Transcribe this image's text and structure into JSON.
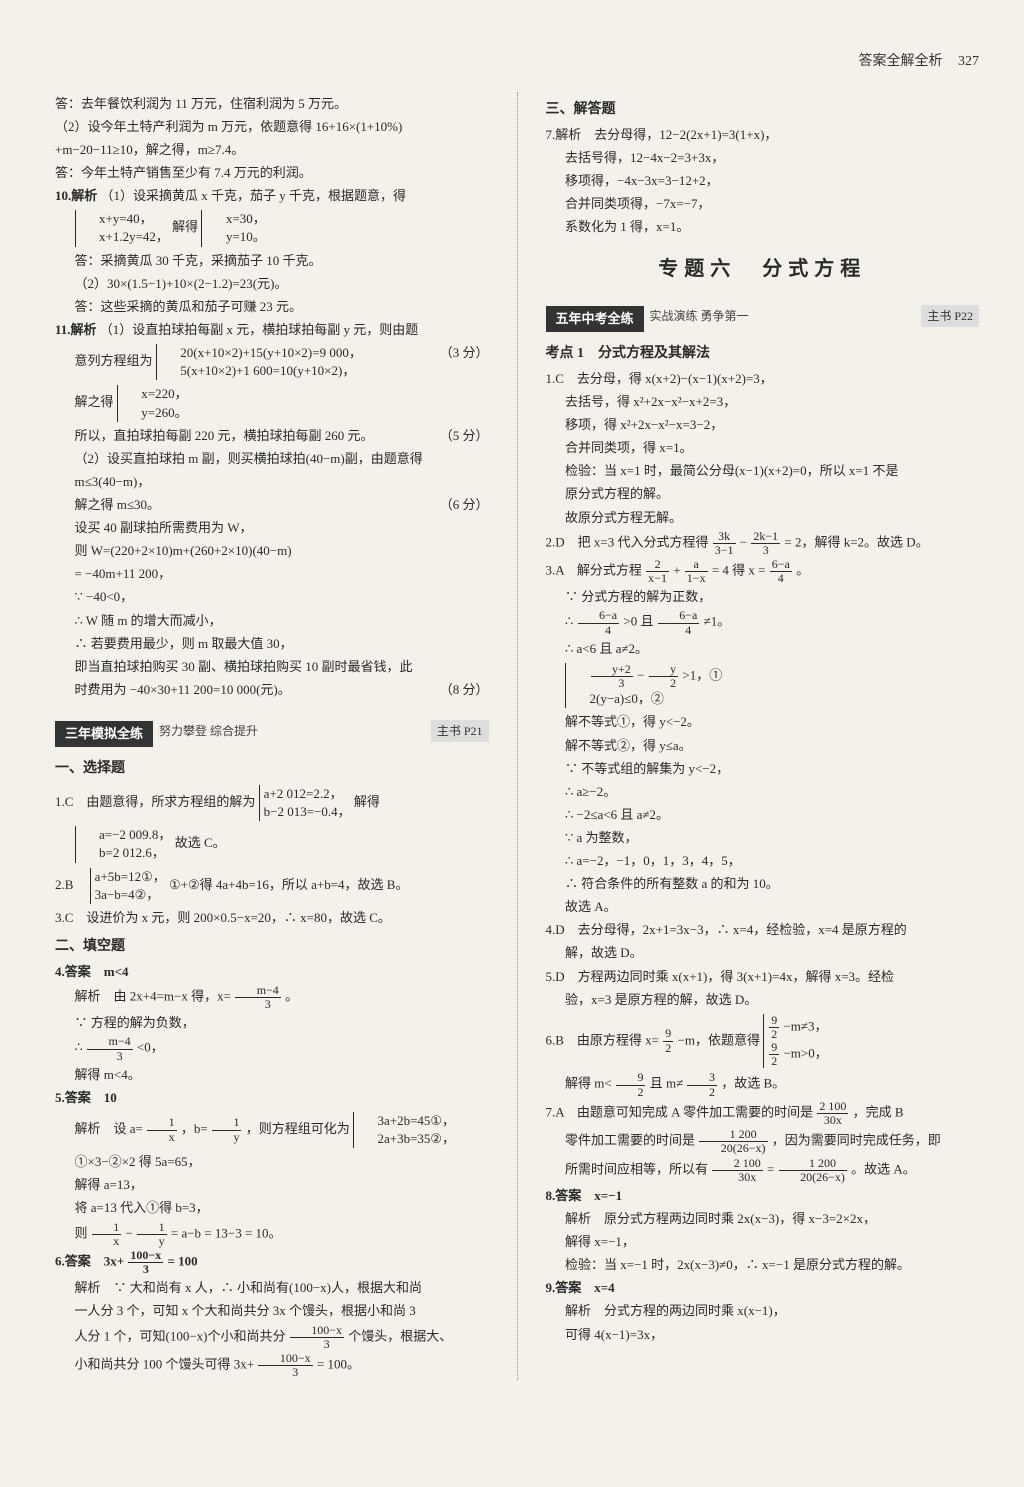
{
  "header": {
    "title": "答案全解全析",
    "page": "327"
  },
  "left": {
    "l1": "答：去年餐饮利润为 11 万元，住宿利润为 5 万元。",
    "l2": "（2）设今年土特产利润为 m 万元，依题意得 16+16×(1+10%)",
    "l3": "+m−20−11≥10，解之得，m≥7.4。",
    "l4": "答：今年土特产销售至少有 7.4 万元的利润。",
    "i10_head": "10.解析",
    "i10_1": "（1）设采摘黄瓜 x 千克，茄子 y 千克，根据题意，得",
    "i10_sys1a": "x+y=40，",
    "i10_sys1b": "x+1.2y=42，",
    "i10_solve": "解得",
    "i10_sys2a": "x=30，",
    "i10_sys2b": "y=10。",
    "i10_2": "答：采摘黄瓜 30 千克，采摘茄子 10 千克。",
    "i10_3": "（2）30×(1.5−1)+10×(2−1.2)=23(元)。",
    "i10_4": "答：这些采摘的黄瓜和茄子可赚 23 元。",
    "i11_head": "11.解析",
    "i11_1": "（1）设直拍球拍每副 x 元，横拍球拍每副 y 元，则由题",
    "i11_2": "意列方程组为",
    "i11_sysa": "20(x+10×2)+15(y+10×2)=9 000，",
    "i11_sysb": "5(x+10×2)+1 600=10(y+10×2)，",
    "i11_score1": "（3 分）",
    "i11_3": "解之得",
    "i11_s2a": "x=220，",
    "i11_s2b": "y=260。",
    "i11_4": "所以，直拍球拍每副 220 元，横拍球拍每副 260 元。",
    "i11_score2": "（5 分）",
    "i11_5": "（2）设买直拍球拍 m 副，则买横拍球拍(40−m)副，由题意得",
    "i11_6": "m≤3(40−m)，",
    "i11_7": "解之得 m≤30。",
    "i11_score3": "（6 分）",
    "i11_8": "设买 40 副球拍所需费用为 W，",
    "i11_9": "则 W=(220+2×10)m+(260+2×10)(40−m)",
    "i11_10": "= −40m+11 200，",
    "i11_11": "∵ −40<0，",
    "i11_12": "∴ W 随 m 的增大而减小，",
    "i11_13": "∴ 若要费用最少，则 m 取最大值 30，",
    "i11_14": "即当直拍球拍购买 30 副、横拍球拍购买 10 副时最省钱，此",
    "i11_15": "时费用为 −40×30+11 200=10 000(元)。",
    "i11_score4": "（8 分）",
    "bar1": "三年模拟全练",
    "bar1_sub": "努力攀登 综合提升",
    "bar1_ref": "主书 P21",
    "sec1": "一、选择题",
    "q1": "1.C　由题意得，所求方程组的解为",
    "q1a": "a+2 012=2.2，",
    "q1b": "b−2 013=−0.4，",
    "q1_solve": "解得",
    "q1c": "a=−2 009.8，",
    "q1d": "b=2 012.6，",
    "q1_end": "故选 C。",
    "q2": "2.B　",
    "q2a": "a+5b=12①，",
    "q2b": "3a−b=4②，",
    "q2_end": "①+②得 4a+4b=16，所以 a+b=4，故选 B。",
    "q3": "3.C　设进价为 x 元，则 200×0.5−x=20，∴ x=80，故选 C。",
    "sec2": "二、填空题",
    "q4": "4.答案　m<4",
    "q4_1": "解析　由 2x+4=m−x 得，x=",
    "q4_f_n": "m−4",
    "q4_f_d": "3",
    "q4_1b": "。",
    "q4_2": "∵ 方程的解为负数，",
    "q4_3": "∴ ",
    "q4_3b": "<0，",
    "q4_4": "解得 m<4。",
    "q5": "5.答案　10",
    "q5_1": "解析　设 a=",
    "q5_fa_n": "1",
    "q5_fa_d": "x",
    "q5_1b": "，b=",
    "q5_fb_n": "1",
    "q5_fb_d": "y",
    "q5_1c": "，则方程组可化为",
    "q5_sa": "3a+2b=45①，",
    "q5_sb": "2a+3b=35②，",
    "q5_2": "①×3−②×2 得 5a=65，",
    "q5_3": "解得 a=13，",
    "q5_4": "将 a=13 代入①得 b=3，",
    "q5_5": "则 ",
    "q5_5b": " − ",
    "q5_5c": " = a−b = 13−3 = 10。",
    "q6": "6.答案　3x+",
    "q6_f_n": "100−x",
    "q6_f_d": "3",
    "q6b": " = 100",
    "q6_1": "解析　∵ 大和尚有 x 人，∴ 小和尚有(100−x)人，根据大和尚",
    "q6_2": "一人分 3 个，可知 x 个大和尚共分 3x 个馒头，根据小和尚 3",
    "q6_3": "人分 1 个，可知(100−x)个小和尚共分",
    "q6_3b": "个馒头，根据大、",
    "q6_4": "小和尚共分 100 个馒头可得 3x+",
    "q6_4b": " = 100。"
  },
  "right": {
    "sec3": "三、解答题",
    "q7": "7.解析　去分母得，12−2(2x+1)=3(1+x)，",
    "q7_1": "去括号得，12−4x−2=3+3x，",
    "q7_2": "移项得，−4x−3x=3−12+2，",
    "q7_3": "合并同类项得，−7x=−7，",
    "q7_4": "系数化为 1 得，x=1。",
    "topic": "专题六　分式方程",
    "bar2": "五年中考全练",
    "bar2_sub": "实战演练 勇争第一",
    "bar2_ref": "主书 P22",
    "kp1": "考点 1　分式方程及其解法",
    "r1": "1.C　去分母，得 x(x+2)−(x−1)(x+2)=3，",
    "r1_1": "去括号，得 x²+2x−x²−x+2=3，",
    "r1_2": "移项，得 x²+2x−x²−x=3−2，",
    "r1_3": "合并同类项，得 x=1。",
    "r1_4": "检验：当 x=1 时，最简公分母(x−1)(x+2)=0，所以 x=1 不是",
    "r1_5": "原分式方程的解。",
    "r1_6": "故原分式方程无解。",
    "r2": "2.D　把 x=3 代入分式方程得",
    "r2_fa_n": "3k",
    "r2_fa_d": "3−1",
    "r2_mid": " − ",
    "r2_fb_n": "2k−1",
    "r2_fb_d": "3",
    "r2_end": " = 2，解得 k=2。故选 D。",
    "r3": "3.A　解分式方程",
    "r3_fa_n": "2",
    "r3_fa_d": "x−1",
    "r3_plus": " + ",
    "r3_fb_n": "a",
    "r3_fb_d": "1−x",
    "r3_eq": " = 4 得 x = ",
    "r3_fc_n": "6−a",
    "r3_fc_d": "4",
    "r3_dot": "。",
    "r3_1": "∵ 分式方程的解为正数，",
    "r3_2": "∴ ",
    "r3_2b": ">0 且 ",
    "r3_2c": "≠1。",
    "r3_3": "∴ a<6 且 a≠2。",
    "r3_sa_n": "y+2",
    "r3_sa_d": "3",
    "r3_sa_m": " − ",
    "r3_sb_n": "y",
    "r3_sb_d": "2",
    "r3_sa_end": " >1，①",
    "r3_sb": "2(y−a)≤0，②",
    "r3_4": "解不等式①，得 y<−2。",
    "r3_5": "解不等式②，得 y≤a。",
    "r3_6": "∵ 不等式组的解集为 y<−2，",
    "r3_7": "∴ a≥−2。",
    "r3_8": "∴ −2≤a<6 且 a≠2。",
    "r3_9": "∵ a 为整数，",
    "r3_10": "∴ a=−2，−1，0，1，3，4，5，",
    "r3_11": "∴ 符合条件的所有整数 a 的和为 10。",
    "r3_12": "故选 A。",
    "r4": "4.D　去分母得，2x+1=3x−3，∴ x=4，经检验，x=4 是原方程的",
    "r4_1": "解，故选 D。",
    "r5": "5.D　方程两边同时乘 x(x+1)，得 3(x+1)=4x，解得 x=3。经检",
    "r5_1": "验，x=3 是原方程的解，故选 D。",
    "r6": "6.B　由原方程得 x=",
    "r6_fa_n": "9",
    "r6_fa_d": "2",
    "r6_mid": "−m，依题意得",
    "r6_sa_n": "9",
    "r6_sa_d": "2",
    "r6_sa_end": "−m≠3，",
    "r6_sb_end": "−m>0，",
    "r6_2": "解得 m<",
    "r6_2b": " 且 m≠",
    "r6_fc_n": "3",
    "r6_fc_d": "2",
    "r6_2c": "，故选 B。",
    "r7": "7.A　由题意可知完成 A 零件加工需要的时间是",
    "r7_fa_n": "2 100",
    "r7_fa_d": "30x",
    "r7_mid": "，完成 B",
    "r7_1": "零件加工需要的时间是",
    "r7_fb_n": "1 200",
    "r7_fb_d": "20(26−x)",
    "r7_1b": "，因为需要同时完成任务，即",
    "r7_2": "所需时间应相等，所以有",
    "r7_eq": " = ",
    "r7_2b": "。故选 A。",
    "r8": "8.答案　x=−1",
    "r8_1": "解析　原分式方程两边同时乘 2x(x−3)，得 x−3=2×2x，",
    "r8_2": "解得 x=−1，",
    "r8_3": "检验：当 x=−1 时，2x(x−3)≠0，∴ x=−1 是原分式方程的解。",
    "r9": "9.答案　x=4",
    "r9_1": "解析　分式方程的两边同时乘 x(x−1)，",
    "r9_2": "可得 4(x−1)=3x，"
  }
}
